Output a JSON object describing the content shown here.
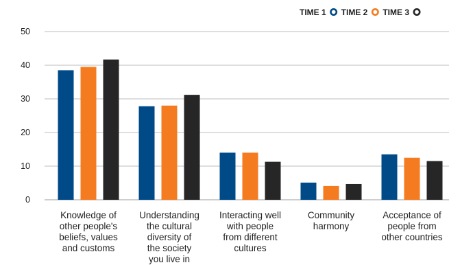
{
  "chart_data": {
    "type": "bar",
    "title": "",
    "xlabel": "",
    "ylabel": "",
    "ylim": [
      0,
      50
    ],
    "yticks": [
      0,
      10,
      20,
      30,
      40,
      50
    ],
    "grid": true,
    "legend_position": "top-right",
    "categories": [
      [
        "Knowledge of",
        "other people's",
        "beliefs, values",
        "and customs"
      ],
      [
        "Understanding",
        "the cultural",
        "diversity of",
        "the society",
        "you live in"
      ],
      [
        "Interacting well",
        "with people",
        "from different",
        "cultures"
      ],
      [
        "Community",
        "harmony"
      ],
      [
        "Acceptance of",
        "people from",
        "other countries"
      ]
    ],
    "series": [
      {
        "name": "TIME 1",
        "color": "#004a87",
        "values": [
          38.5,
          27.8,
          14.0,
          5.1,
          13.5
        ]
      },
      {
        "name": "TIME 2",
        "color": "#f47b20",
        "values": [
          39.5,
          28.0,
          14.0,
          4.1,
          12.5
        ]
      },
      {
        "name": "TIME 3",
        "color": "#262626",
        "values": [
          41.7,
          31.2,
          11.3,
          4.7,
          11.5
        ]
      }
    ]
  }
}
